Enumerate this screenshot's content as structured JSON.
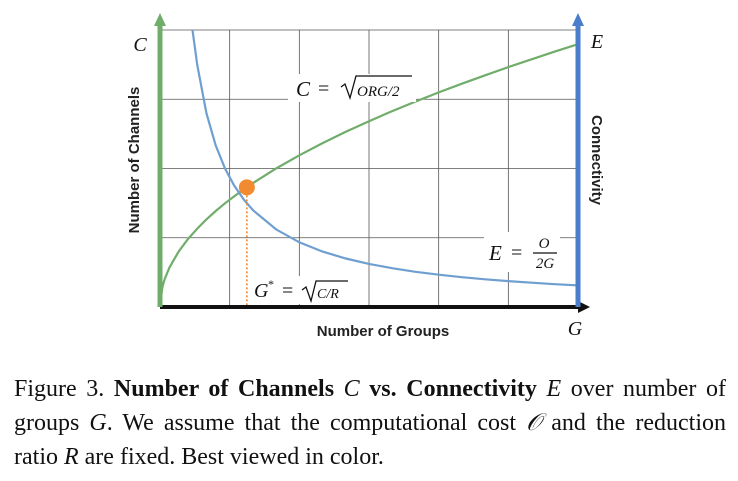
{
  "chart_data": {
    "type": "line",
    "xlabel": "Number of Groups",
    "ylabel_left": "Number of Channels",
    "ylabel_right": "Connectivity",
    "x_axis_symbol": "G",
    "left_axis_symbol": "C",
    "right_axis_symbol": "E",
    "grid": true,
    "series": [
      {
        "color": "#70ad6b",
        "equation": "C = √(ORG/2)",
        "x": [
          0,
          0.25,
          0.5,
          1,
          2,
          3,
          4,
          5,
          6,
          7,
          8,
          9,
          10,
          12.5,
          15,
          17.5,
          20,
          22.5,
          25,
          27.5,
          30,
          32.5,
          35,
          37.5,
          40,
          42.5,
          45
        ],
        "y": [
          0,
          0.354,
          0.5,
          0.707,
          1,
          1.225,
          1.414,
          1.581,
          1.732,
          1.871,
          2,
          2.121,
          2.236,
          2.5,
          2.739,
          2.958,
          3.162,
          3.354,
          3.536,
          3.708,
          3.873,
          4.031,
          4.183,
          4.33,
          4.472,
          4.61,
          4.743
        ]
      },
      {
        "color": "#6f9fd0",
        "equation": "E = O/2G",
        "x": [
          3.5,
          4,
          5,
          6,
          7,
          8,
          9,
          10,
          12.5,
          15,
          17.5,
          20,
          22.5,
          25,
          27.5,
          30,
          32.5,
          35,
          37.5,
          40,
          42.5,
          45
        ],
        "y": [
          5.0,
          4.375,
          3.5,
          2.917,
          2.5,
          2.188,
          1.944,
          1.75,
          1.4,
          1.167,
          1.0,
          0.875,
          0.778,
          0.7,
          0.636,
          0.583,
          0.538,
          0.5,
          0.467,
          0.438,
          0.412,
          0.389
        ]
      }
    ],
    "intersection": {
      "x": 9.35,
      "y": 2.16,
      "color": "#f28a30",
      "label": "G* = √(C/R)"
    },
    "xlim": [
      0,
      45
    ],
    "ylim": [
      0,
      5
    ]
  },
  "caption": {
    "prefix": "Figure 3. ",
    "bold1": "Number of Channels ",
    "sym_c": "C",
    "bold2": " vs. Connectivity ",
    "sym_e": "E",
    "text1": " over number of groups ",
    "sym_g": "G",
    "text2": ". We assume that the computational cost ",
    "sym_o": "𝒪",
    "text3": " and the reduction ratio ",
    "sym_r": "R",
    "text4": " are fixed. Best viewed in color."
  }
}
